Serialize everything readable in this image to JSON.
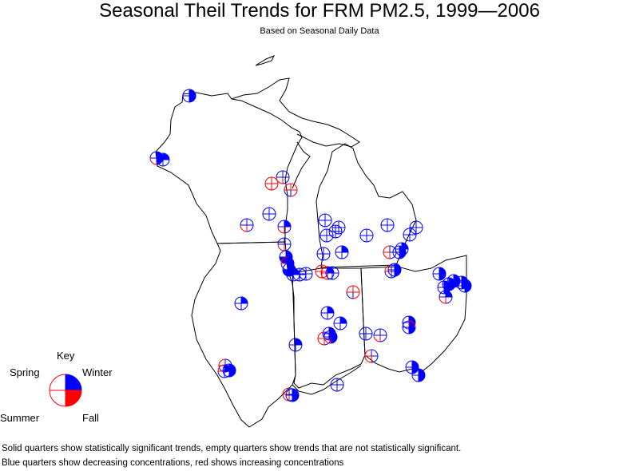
{
  "title": "Seasonal Theil Trends for FRM PM2.5, 1999—2006",
  "subtitle": "Based on Seasonal Daily Data",
  "colors": {
    "decrease": "#0000ff",
    "increase": "#ff0000",
    "boundary": "#000000"
  },
  "key": {
    "heading": "Key",
    "spring": "Spring",
    "winter": "Winter",
    "summer": "Summer",
    "fall": "Fall",
    "sample": {
      "winter": "B",
      "spring": "r",
      "summer": "r",
      "fall": "R"
    }
  },
  "notes": [
    "Solid quarters show statistically significant trends, empty quarters show trends that are not statistically significant.",
    "Blue quarters show decreasing concentrations, red shows increasing concentrations"
  ]
}
